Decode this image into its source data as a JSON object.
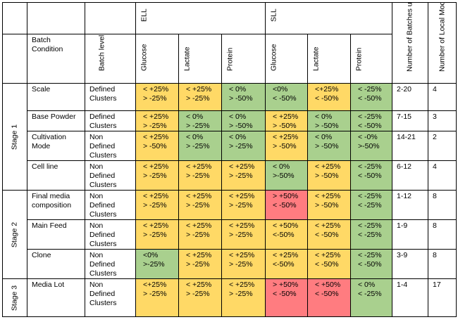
{
  "headers": {
    "ell": "ELL",
    "sll": "SLL",
    "batch_condition": "Batch\nCondition",
    "batch_level_pca": "Batch\nlevel PCA",
    "glucose": "Glucose",
    "lactate": "Lactate",
    "protein": "Protein",
    "num_batches": "Number of Batches\nused for local\nmodels",
    "num_local_models": "Number of Local\nModels"
  },
  "stages": [
    "Stage 1",
    "Stage 2",
    "Stage 3"
  ],
  "rows": [
    {
      "condition": "Scale",
      "pca": "Defined\nClusters",
      "cells": [
        {
          "text": "< +25%\n> -25%",
          "color": "y"
        },
        {
          "text": "< +25%\n> -25%",
          "color": "y"
        },
        {
          "text": "< 0%\n> -50%",
          "color": "g"
        },
        {
          "text": "<0%\n< -50%",
          "color": "g"
        },
        {
          "text": "<+25%\n< -50%",
          "color": "y"
        },
        {
          "text": "< -25%\n< -50%",
          "color": "g"
        }
      ],
      "batches": "2-20",
      "models": "4"
    },
    {
      "condition": "Base Powder",
      "pca": "Defined\nClusters",
      "cells": [
        {
          "text": "< +25%\n> -25%",
          "color": "y"
        },
        {
          "text": "< 0%\n> -25%",
          "color": "g"
        },
        {
          "text": "< 0%\n> -50%",
          "color": "g"
        },
        {
          "text": "< +25%\n> -50%",
          "color": "y"
        },
        {
          "text": "< 0%\n> -50%",
          "color": "g"
        },
        {
          "text": "< -25%\n< -50%",
          "color": "g"
        }
      ],
      "batches": "7-15",
      "models": "3"
    },
    {
      "condition": "Cultivation\nMode",
      "pca": "Non\nDefined\nClusters",
      "cells": [
        {
          "text": "< +25%\n> -50%",
          "color": "y"
        },
        {
          "text": "< 0%\n> -25%",
          "color": "g"
        },
        {
          "text": "< 0%\n> -25%",
          "color": "g"
        },
        {
          "text": "< +25%\n> -50%",
          "color": "y"
        },
        {
          "text": "< 0%\n> -50%",
          "color": "g"
        },
        {
          "text": "< -0%\n>-50%",
          "color": "g"
        }
      ],
      "batches": "14-21",
      "models": "2"
    },
    {
      "condition": "Cell line",
      "pca": "Non\nDefined\nClusters",
      "cells": [
        {
          "text": "< +25%\n> -25%",
          "color": "y"
        },
        {
          "text": "< +25%\n> -25%",
          "color": "y"
        },
        {
          "text": "< +25%\n> -25%",
          "color": "y"
        },
        {
          "text": "< 0%\n>-50%",
          "color": "g"
        },
        {
          "text": "< +25%\n> -50%",
          "color": "y"
        },
        {
          "text": "< -25%\n< -50%",
          "color": "g"
        }
      ],
      "batches": "6-12",
      "models": "4"
    },
    {
      "condition": "Final media\ncomposition",
      "pca": "Non\nDefined\nClusters",
      "cells": [
        {
          "text": "< +25%\n> -25%",
          "color": "y"
        },
        {
          "text": "< +25%\n> -25%",
          "color": "y"
        },
        {
          "text": "< +25%\n> -25%",
          "color": "y"
        },
        {
          "text": "> +50%\n< -50%",
          "color": "r"
        },
        {
          "text": "< +25%\n> -50%",
          "color": "y"
        },
        {
          "text": "< -25%\n< -25%",
          "color": "g"
        }
      ],
      "batches": "1-12",
      "models": "8"
    },
    {
      "condition": "Main Feed",
      "pca": "Non\nDefined\nClusters",
      "cells": [
        {
          "text": "< +25%\n> -25%",
          "color": "y"
        },
        {
          "text": "< +25%\n> -25%",
          "color": "y"
        },
        {
          "text": "< +25%\n> -25%",
          "color": "y"
        },
        {
          "text": "< +50%\n<-50%",
          "color": "y"
        },
        {
          "text": "< +25%\n< -50%",
          "color": "y"
        },
        {
          "text": "< -25%\n< -25%",
          "color": "g"
        }
      ],
      "batches": "1-9",
      "models": "8"
    },
    {
      "condition": "Clone",
      "pca": "Non\nDefined\nClusters",
      "cells": [
        {
          "text": "<0%\n>-25%",
          "color": "g"
        },
        {
          "text": "< +25%\n> -25%",
          "color": "y"
        },
        {
          "text": "< +25%\n> -25%",
          "color": "y"
        },
        {
          "text": "< +25%\n<-50%",
          "color": "y"
        },
        {
          "text": "< +25%\n< -50%",
          "color": "y"
        },
        {
          "text": "< -25%\n< -50%",
          "color": "g"
        }
      ],
      "batches": "3-9",
      "models": "8"
    },
    {
      "condition": "Media Lot",
      "pca": "Non\nDefined\nClusters",
      "cells": [
        {
          "text": "<+25%\n> -25%",
          "color": "y"
        },
        {
          "text": "< +25%\n> -25%",
          "color": "y"
        },
        {
          "text": "< +25%\n> -25%",
          "color": "y"
        },
        {
          "text": "> +50%\n< -50%",
          "color": "r"
        },
        {
          "text": "< +50%\n< -50%",
          "color": "r"
        },
        {
          "text": "< 0%\n< -25%",
          "color": "g"
        }
      ],
      "batches": "1-4",
      "models": "17"
    }
  ]
}
